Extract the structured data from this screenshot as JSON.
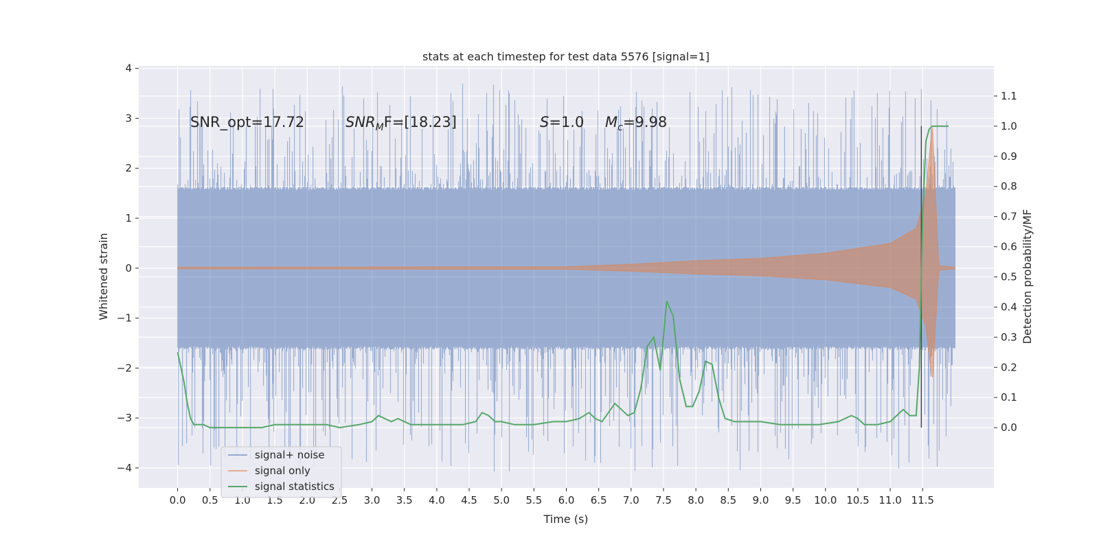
{
  "chart_data": {
    "type": "line",
    "title": "stats at each timestep for test data 5576 [signal=1]",
    "xlabel": "Time (s)",
    "ylabel": "Whitened strain",
    "ylabel_right": "Detection probability/MF",
    "xlim": [
      -0.6,
      12.6
    ],
    "ylim": [
      -4.4,
      4.05
    ],
    "ylim_right": [
      -0.2,
      1.2
    ],
    "x_ticks": [
      "0.0",
      "0.5",
      "1.0",
      "1.5",
      "2.0",
      "2.5",
      "3.0",
      "3.5",
      "4.0",
      "4.5",
      "5.0",
      "5.5",
      "6.0",
      "6.5",
      "7.0",
      "7.5",
      "8.0",
      "8.5",
      "9.0",
      "9.5",
      "10.0",
      "10.5",
      "11.0",
      "11.5"
    ],
    "y_ticks": [
      "4",
      "3",
      "2",
      "1",
      "0",
      "−1",
      "−2",
      "−3",
      "−4"
    ],
    "y_ticks_right": [
      "1.1",
      "1.0",
      "0.9",
      "0.8",
      "0.7",
      "0.6",
      "0.5",
      "0.4",
      "0.3",
      "0.2",
      "0.1",
      "0.0"
    ],
    "grid": true,
    "legend_placement": "lower-left",
    "annotations": {
      "snr_opt": "SNR_opt=17.72",
      "snr_mf_base": "SNR",
      "snr_mf_sub": "M",
      "snr_mf_rest": "F=[18.23]",
      "s_base": "S",
      "s_rest": "=1.0",
      "mc_base": "M",
      "mc_sub": "c",
      "mc_rest": "=9.98"
    },
    "series": [
      {
        "name": "signal+ noise",
        "color": "#4c72b0",
        "description_values": "whitened noise band spanning roughly ±1.6 with spikes up to ±3.7",
        "x_range": [
          0.0,
          12.0
        ],
        "envelope_typical": 1.6,
        "peak_max": 3.7,
        "peak_min": -4.1
      },
      {
        "name": "signal only",
        "color": "#dd8452",
        "x_range": [
          0.0,
          12.0
        ],
        "chirp_amplitude": [
          [
            0.0,
            0.02
          ],
          [
            6.0,
            0.03
          ],
          [
            7.0,
            0.08
          ],
          [
            8.0,
            0.15
          ],
          [
            9.0,
            0.2
          ],
          [
            10.0,
            0.3
          ],
          [
            11.0,
            0.5
          ],
          [
            11.4,
            0.8
          ],
          [
            11.55,
            1.5
          ],
          [
            11.65,
            2.9
          ],
          [
            11.75,
            0.05
          ],
          [
            12.0,
            0.02
          ]
        ]
      },
      {
        "name": "signal statistics",
        "color": "#55a868",
        "x": [
          0.0,
          0.1,
          0.15,
          0.2,
          0.25,
          0.3,
          0.4,
          0.5,
          0.7,
          0.9,
          1.1,
          1.3,
          1.5,
          1.7,
          1.9,
          2.1,
          2.3,
          2.5,
          2.8,
          3.0,
          3.1,
          3.2,
          3.3,
          3.4,
          3.5,
          3.6,
          3.8,
          4.0,
          4.2,
          4.4,
          4.6,
          4.7,
          4.8,
          4.9,
          5.0,
          5.2,
          5.5,
          5.8,
          6.0,
          6.2,
          6.35,
          6.45,
          6.55,
          6.65,
          6.75,
          6.85,
          6.95,
          7.05,
          7.15,
          7.25,
          7.35,
          7.45,
          7.55,
          7.65,
          7.75,
          7.85,
          7.95,
          8.05,
          8.15,
          8.25,
          8.35,
          8.45,
          8.6,
          8.8,
          9.0,
          9.3,
          9.6,
          9.9,
          10.2,
          10.4,
          10.5,
          10.6,
          10.8,
          11.0,
          11.1,
          11.2,
          11.25,
          11.3,
          11.4,
          11.45,
          11.5,
          11.55,
          11.6,
          11.65,
          11.8,
          11.9
        ],
        "values": [
          0.25,
          0.15,
          0.08,
          0.03,
          0.01,
          0.01,
          0.01,
          0.0,
          0.0,
          0.0,
          0.0,
          0.0,
          0.01,
          0.01,
          0.01,
          0.01,
          0.01,
          0.0,
          0.01,
          0.02,
          0.04,
          0.03,
          0.02,
          0.03,
          0.02,
          0.01,
          0.01,
          0.01,
          0.01,
          0.01,
          0.02,
          0.05,
          0.04,
          0.02,
          0.02,
          0.01,
          0.01,
          0.02,
          0.02,
          0.03,
          0.05,
          0.03,
          0.02,
          0.05,
          0.08,
          0.06,
          0.04,
          0.05,
          0.13,
          0.27,
          0.3,
          0.19,
          0.42,
          0.37,
          0.16,
          0.07,
          0.07,
          0.12,
          0.22,
          0.21,
          0.1,
          0.03,
          0.02,
          0.02,
          0.02,
          0.01,
          0.01,
          0.01,
          0.02,
          0.04,
          0.03,
          0.01,
          0.01,
          0.02,
          0.04,
          0.06,
          0.05,
          0.04,
          0.04,
          0.2,
          0.7,
          0.95,
          0.99,
          1.0,
          1.0,
          1.0
        ]
      }
    ],
    "vertical_marker_x": 11.48
  }
}
